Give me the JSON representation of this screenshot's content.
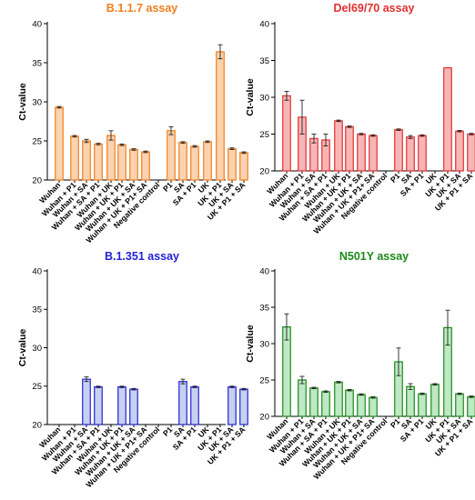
{
  "chart_data": [
    {
      "type": "bar",
      "title": "B.1.1.7 assay",
      "ylabel": "Ct-value",
      "ylim": [
        20,
        40
      ],
      "yticks": [
        20,
        25,
        30,
        35,
        40
      ],
      "color": "#f07f1e",
      "fill": "#fbd3b0",
      "categories": [
        "Wuhan",
        "Wuhan + P1",
        "Wuhan + SA",
        "Wuhan + SA + P1",
        "Wuhan + UK",
        "Wuhan + UK + P1",
        "Wuhan + UK + SA",
        "Wuhan + UK + P1+ SA",
        "Negative control",
        "P1",
        "SA",
        "SA + P1",
        "UK",
        "UK + P1",
        "UK + SA",
        "UK + P1 + SA"
      ],
      "values": [
        29.3,
        25.6,
        25.0,
        24.6,
        25.7,
        24.5,
        23.9,
        23.6,
        null,
        26.3,
        24.8,
        24.3,
        24.9,
        36.4,
        24.0,
        23.5
      ],
      "errors": [
        0.1,
        0.1,
        0.2,
        0.1,
        0.6,
        0.1,
        0.1,
        0.1,
        null,
        0.5,
        0.1,
        0.1,
        0.1,
        0.9,
        0.1,
        0.1
      ]
    },
    {
      "type": "bar",
      "title": "Del69/70 assay",
      "ylabel": "Ct-value",
      "ylim": [
        20,
        40
      ],
      "yticks": [
        20,
        25,
        30,
        35,
        40
      ],
      "color": "#e03131",
      "fill": "#f7b6b6",
      "categories": [
        "Wuhan",
        "Wuhan + P1",
        "Wuhan + SA",
        "Wuhan + SA + P1",
        "Wuhan + UK",
        "Wuhan + UK + P1",
        "Wuhan + UK + SA",
        "Wuhan + UK + P1+ SA",
        "Negative control",
        "P1",
        "SA",
        "SA + P1",
        "UK",
        "UK + P1",
        "UK + SA",
        "UK + P1 + SA"
      ],
      "values": [
        30.2,
        27.3,
        24.4,
        24.2,
        26.8,
        26.0,
        25.0,
        24.8,
        null,
        25.6,
        24.6,
        24.8,
        null,
        34.0,
        25.4,
        25.0
      ],
      "errors": [
        0.6,
        2.3,
        0.6,
        0.8,
        0.1,
        0.1,
        0.1,
        0.1,
        null,
        0.1,
        0.2,
        0.1,
        null,
        0.0,
        0.1,
        0.1
      ]
    },
    {
      "type": "bar",
      "title": "B.1.351 assay",
      "ylabel": "Ct-value",
      "ylim": [
        20,
        40
      ],
      "yticks": [
        20,
        25,
        30,
        35,
        40
      ],
      "color": "#2323d6",
      "fill": "#c5d1ef",
      "categories": [
        "Wuhan",
        "Wuhan + P1",
        "Wuhan + SA",
        "Wuhan + SA + P1",
        "Wuhan + UK",
        "Wuhan + UK + P1",
        "Wuhan + UK + SA",
        "Wuhan + UK + P1+ SA",
        "Negative control",
        "P1",
        "SA",
        "SA + P1",
        "UK",
        "UK + P1",
        "UK + SA",
        "UK + P1 + SA"
      ],
      "values": [
        null,
        null,
        25.9,
        24.9,
        null,
        24.9,
        24.6,
        null,
        null,
        null,
        25.6,
        24.9,
        null,
        null,
        24.9,
        24.6
      ],
      "errors": [
        null,
        null,
        0.3,
        0.1,
        null,
        0.1,
        0.1,
        null,
        null,
        null,
        0.3,
        0.1,
        null,
        null,
        0.1,
        0.1
      ]
    },
    {
      "type": "bar",
      "title": "N501Y assay",
      "ylabel": "Ct-value",
      "ylim": [
        20,
        40
      ],
      "yticks": [
        20,
        25,
        30,
        35,
        40
      ],
      "color": "#1a8a1a",
      "fill": "#bfe9c4",
      "categories": [
        "Wuhan",
        "Wuhan + P1",
        "Wuhan + SA",
        "Wuhan + SA + P1",
        "Wuhan + UK",
        "Wuhan + UK + P1",
        "Wuhan + UK + SA",
        "Wuhan + UK + P1+ SA",
        "Negative control",
        "P1",
        "SA",
        "SA + P1",
        "UK",
        "UK + P1",
        "UK + SA",
        "UK + P1 + SA"
      ],
      "values": [
        32.3,
        25.0,
        23.9,
        23.4,
        24.7,
        23.6,
        23.0,
        22.6,
        null,
        27.5,
        24.1,
        23.1,
        24.4,
        32.2,
        23.1,
        22.7
      ],
      "errors": [
        1.8,
        0.5,
        0.1,
        0.1,
        0.1,
        0.1,
        0.1,
        0.1,
        null,
        1.9,
        0.4,
        0.1,
        0.1,
        2.4,
        0.1,
        0.1
      ]
    }
  ]
}
